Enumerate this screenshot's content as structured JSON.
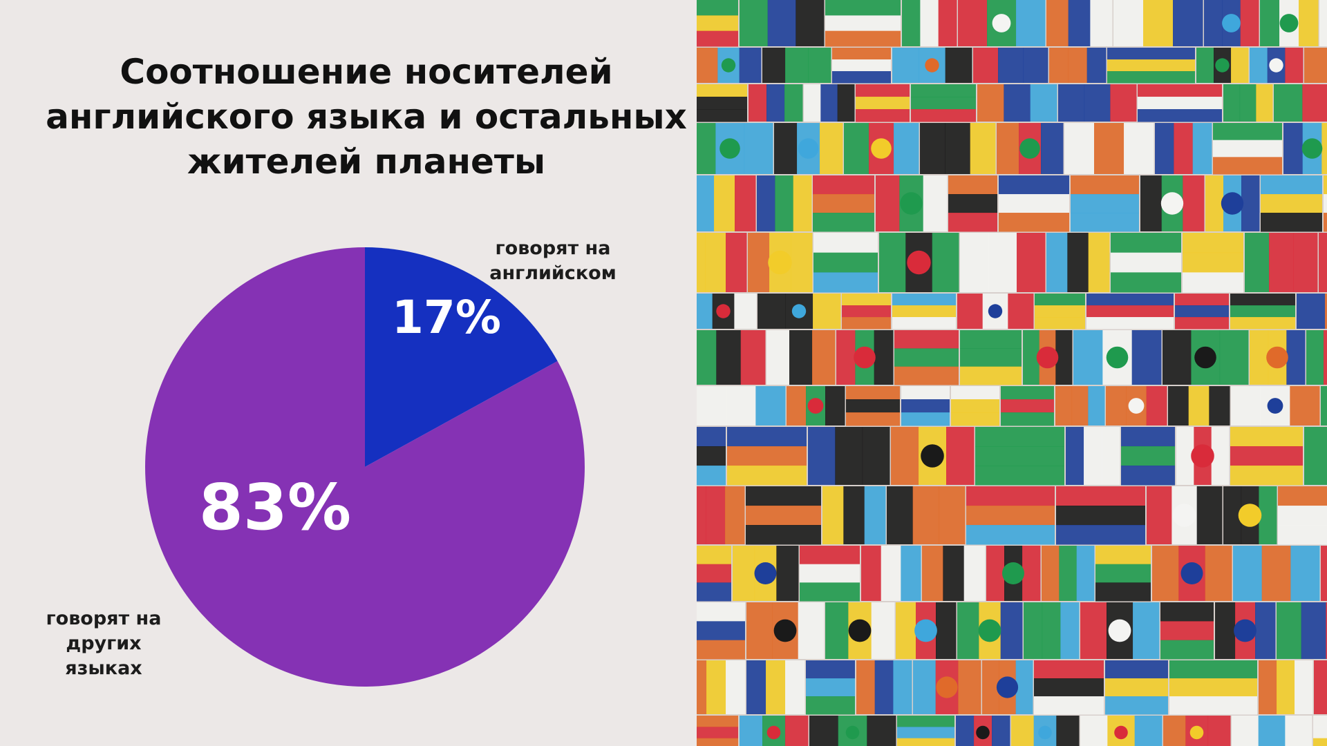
{
  "title_lines": [
    "Соотношение носителей",
    "английского языка и остальных",
    "жителей планеты"
  ],
  "chart_data": {
    "type": "pie",
    "title": "Соотношение носителей английского языка и остальных жителей планеты",
    "slices": [
      {
        "label": "говорят на английском",
        "value": 17,
        "display": "17%",
        "color": "#1530c0"
      },
      {
        "label": "говорят на других языках",
        "value": 83,
        "display": "83%",
        "color": "#8532b4"
      }
    ]
  },
  "labels": {
    "english_lines": [
      "говорят на",
      "английском"
    ],
    "others_lines": [
      "говорят на",
      "других",
      "языках"
    ]
  },
  "flags_image": {
    "description_icon": "world-flags-collage",
    "palette": [
      "#d92b3a",
      "#f4f4f2",
      "#1e3f9a",
      "#1f9a4e",
      "#f2cc2a",
      "#e06a2a",
      "#1a1a1a",
      "#3fa7dc"
    ]
  }
}
